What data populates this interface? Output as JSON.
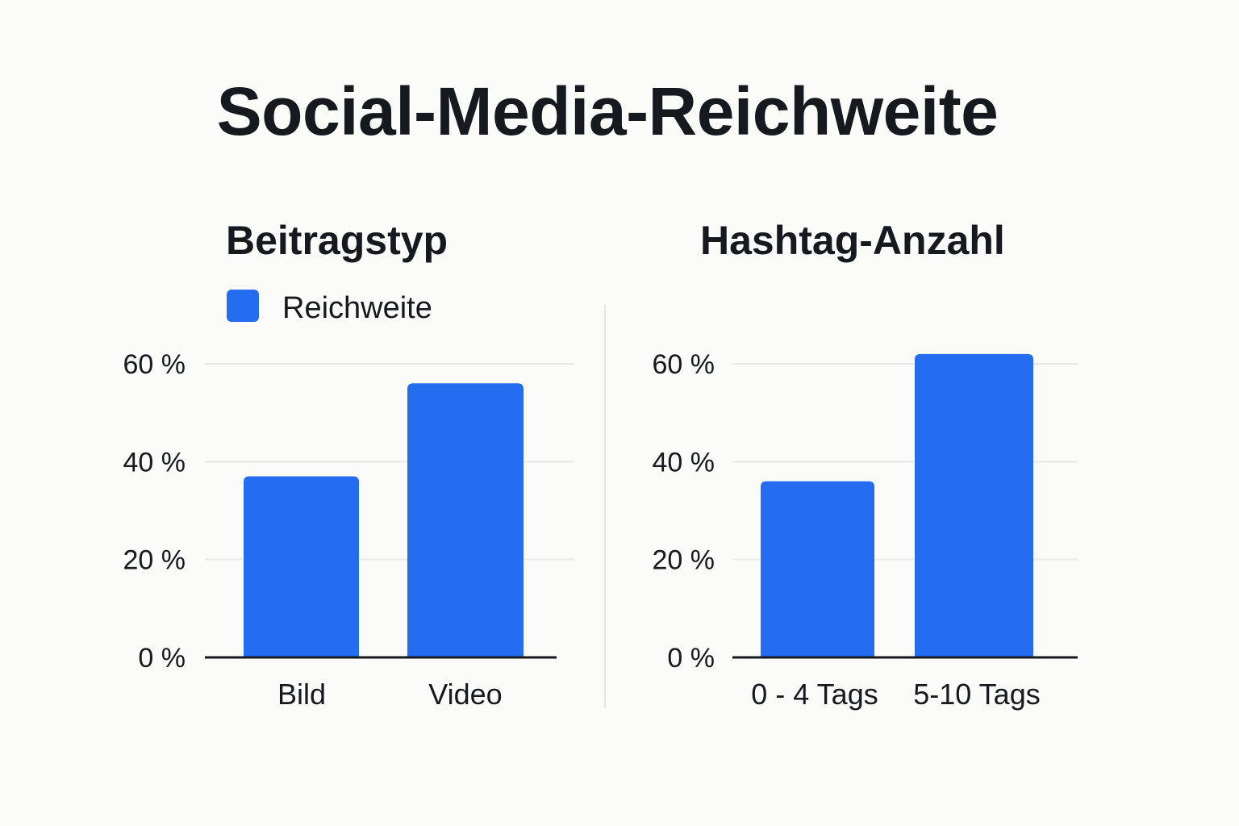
{
  "title": "Social-Media-Reichweite",
  "colors": {
    "bar": "#256df0",
    "grid": "#e9e9e9",
    "axis": "#161a1f",
    "divider": "#e6e6e6",
    "text": "#161a1f"
  },
  "chart_data": [
    {
      "type": "bar",
      "title": "Beitragstyp",
      "legend": [
        "Reichweite"
      ],
      "legend_position": "top-left",
      "categories": [
        "Bild",
        "Video"
      ],
      "series": [
        {
          "name": "Reichweite",
          "values": [
            37,
            56
          ]
        }
      ],
      "yticks": [
        "0 %",
        "20 %",
        "40 %",
        "60 %"
      ],
      "ylim": [
        0,
        60
      ],
      "grid": true,
      "xlabel": "",
      "ylabel": ""
    },
    {
      "type": "bar",
      "title": "Hashtag-Anzahl",
      "categories": [
        "0 - 4 Tags",
        "5-10 Tags"
      ],
      "series": [
        {
          "values": [
            36,
            62
          ]
        }
      ],
      "yticks": [
        "0 %",
        "20 %",
        "40 %",
        "60 %"
      ],
      "ylim": [
        0,
        60
      ],
      "grid": true,
      "xlabel": "",
      "ylabel": ""
    }
  ]
}
